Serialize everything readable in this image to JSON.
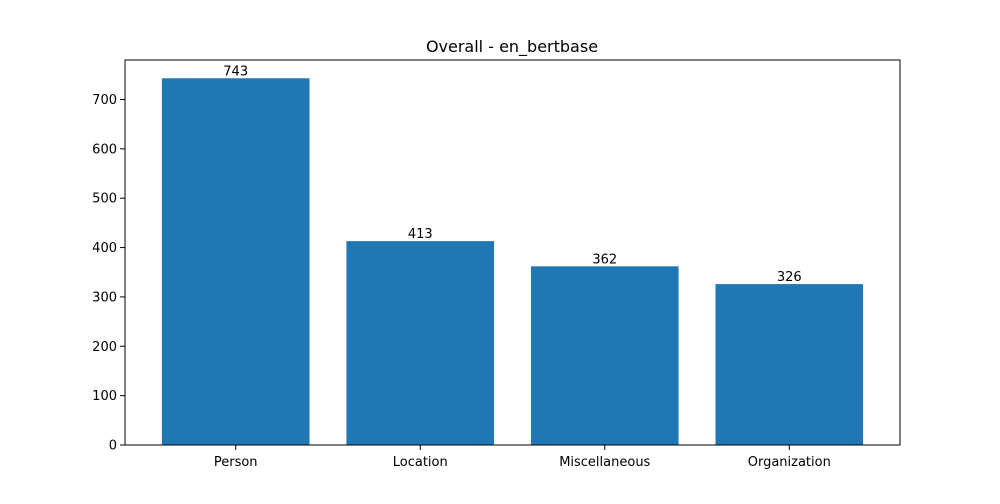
{
  "chart_data": {
    "type": "bar",
    "title": "Overall - en_bertbase",
    "xlabel": "",
    "ylabel": "",
    "categories": [
      "Person",
      "Location",
      "Miscellaneous",
      "Organization"
    ],
    "values": [
      743,
      413,
      362,
      326
    ],
    "data_labels": [
      "743",
      "413",
      "362",
      "326"
    ],
    "y_ticks": [
      0,
      100,
      200,
      300,
      400,
      500,
      600,
      700
    ],
    "y_tick_labels": [
      "0",
      "100",
      "200",
      "300",
      "400",
      "500",
      "600",
      "700"
    ],
    "ylim": [
      0,
      780
    ],
    "grid": false,
    "legend": "none",
    "colors": {
      "bar": "#1f77b4",
      "axis": "#000000",
      "background": "#ffffff"
    }
  }
}
